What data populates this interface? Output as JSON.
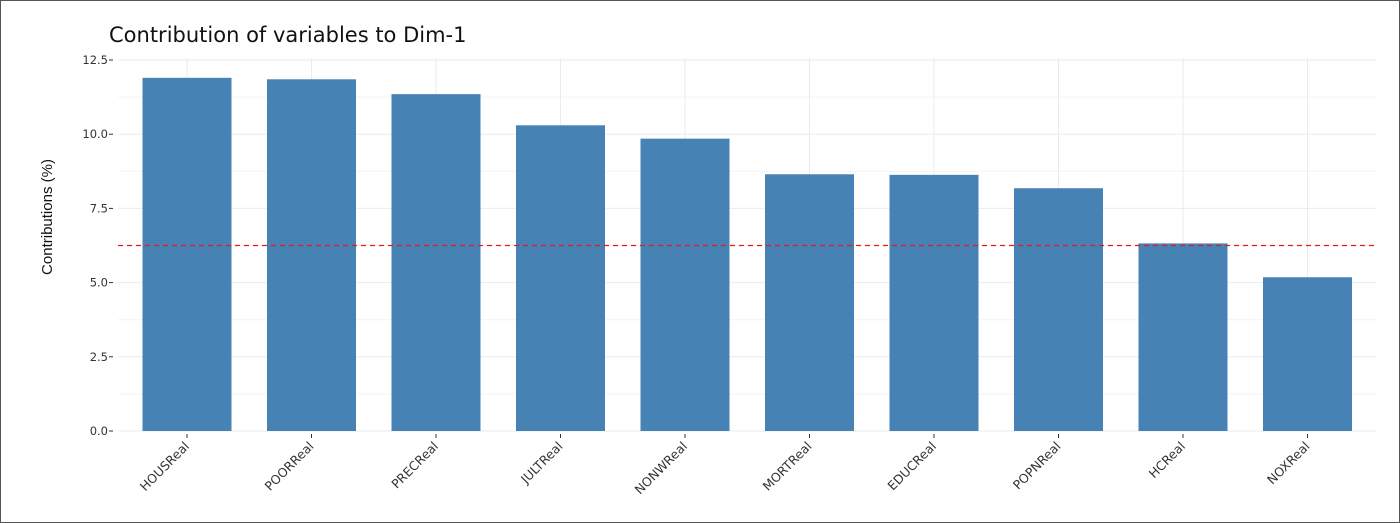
{
  "chart_data": {
    "type": "bar",
    "title": "Contribution of variables to Dim-1",
    "xlabel": "",
    "ylabel": "Contributions (%)",
    "categories": [
      "HOUSReal",
      "POORReal",
      "PRECReal",
      "JULTReal",
      "NONWReal",
      "MORTReal",
      "EDUCReal",
      "POPNReal",
      "HCReal",
      "NOXReal"
    ],
    "values": [
      11.9,
      11.85,
      11.35,
      10.3,
      9.85,
      8.65,
      8.63,
      8.18,
      6.32,
      5.18
    ],
    "ylim": [
      0,
      12.5
    ],
    "yticks": [
      "0.0",
      "2.5",
      "5.0",
      "7.5",
      "10.0",
      "12.5"
    ],
    "reference_line": 6.25,
    "grid": true,
    "colors": {
      "bar": "#4682b4",
      "reference_line": "#e41a1c",
      "grid": "#ebebeb"
    }
  }
}
